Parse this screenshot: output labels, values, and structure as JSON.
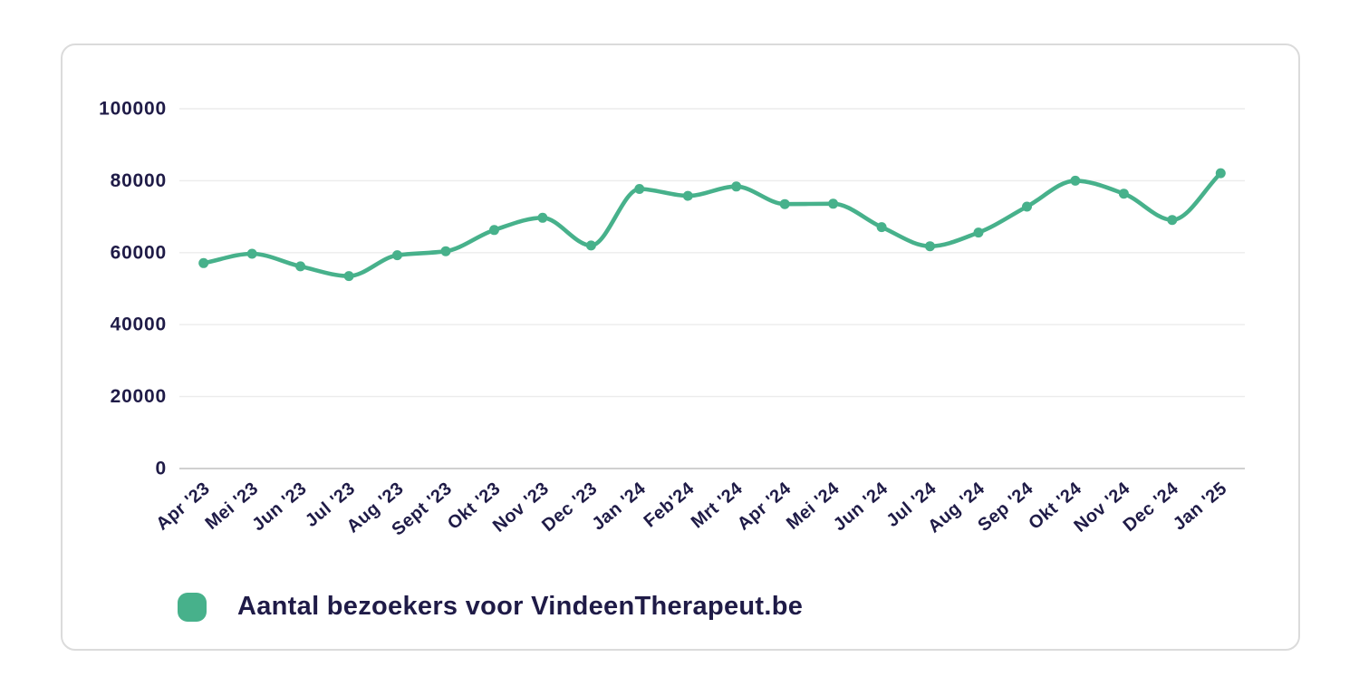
{
  "chart_data": {
    "type": "line",
    "title": "",
    "categories": [
      "Apr '23",
      "Mei '23",
      "Jun '23",
      "Jul '23",
      "Aug '23",
      "Sept '23",
      "Okt '23",
      "Nov '23",
      "Dec '23",
      "Jan '24",
      "Feb'24",
      "Mrt '24",
      "Apr '24",
      "Mei '24",
      "Jun '24",
      "Jul '24",
      "Aug '24",
      "Sep '24",
      "Okt '24",
      "Nov '24",
      "Dec '24",
      "Jan '25"
    ],
    "series": [
      {
        "name": "Aantal bezoekers voor VindeenTherapeut.be",
        "values": [
          57100,
          59700,
          56200,
          53500,
          59300,
          60400,
          66300,
          69700,
          62000,
          77700,
          75800,
          78400,
          73500,
          73600,
          67100,
          61800,
          65600,
          72800,
          80000,
          76400,
          69100,
          82100
        ]
      }
    ],
    "xlabel": "",
    "ylabel": "",
    "ylim": [
      0,
      100000
    ],
    "yticks": [
      0,
      20000,
      40000,
      60000,
      80000,
      100000
    ],
    "grid": "horizontal-only",
    "legend_position": "bottom-left",
    "x_label_rotation": -40,
    "colors": {
      "line": "#47b18b",
      "point": "#47b18b",
      "text": "#1f1b47",
      "grid": "#ececec",
      "zero_line": "#c9c9c9",
      "card_border": "#dbdbdb",
      "background": "#ffffff"
    }
  },
  "legend": {
    "label": "Aantal bezoekers voor VindeenTherapeut.be",
    "marker_color": "#47b18b"
  }
}
